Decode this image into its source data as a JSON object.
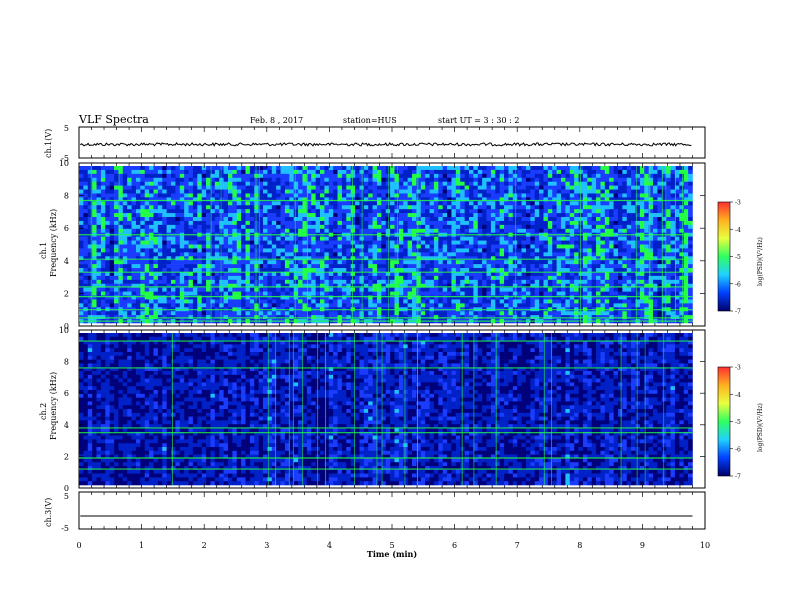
{
  "header": {
    "title": "VLF Spectra",
    "date": "Feb. 8  , 2017",
    "station": "station=HUS",
    "start": "start  UT  =   3  : 30 : 2"
  },
  "colors": {
    "spec_low": "#00007a",
    "spec_mid": "#1a3cff",
    "spec_high": "#22ff44",
    "trace": "#000000"
  },
  "colorbar": {
    "label": "log(PSD)(V²/Hz)",
    "ticks": [
      "-3",
      "-4",
      "-5",
      "-6",
      "-7"
    ],
    "range": [
      -7,
      -3
    ],
    "stops": [
      "#ff3030",
      "#ffb020",
      "#e8ff40",
      "#30ff60",
      "#20d0ff",
      "#0040ff",
      "#00006a"
    ]
  },
  "chart_data": [
    {
      "type": "line",
      "panel": "ch1-waveform",
      "ylabel": "ch.1(V)",
      "ylim": [
        -5,
        5
      ],
      "yticks": [
        "5",
        "-5"
      ],
      "xlim": [
        0,
        10
      ],
      "series": [
        {
          "values_description_level": -0.6
        }
      ]
    },
    {
      "type": "heatmap",
      "panel": "ch1-spectrogram",
      "ylabel": "ch.1",
      "ylabel2": "Frequency (kHz)",
      "ylim": [
        0,
        10
      ],
      "yticks": [
        "0",
        "2",
        "4",
        "6",
        "8",
        "10"
      ],
      "xlim": [
        0,
        9.8
      ],
      "band_lines_khz": [
        0.3,
        0.5,
        1.0,
        1.8,
        2.4,
        3.3,
        4.1,
        5.6,
        7.7
      ],
      "mean_intensity": 0.62
    },
    {
      "type": "heatmap",
      "panel": "ch2-spectrogram",
      "ylabel": "ch.2",
      "ylabel2": "Frequency (kHz)",
      "ylim": [
        0,
        10
      ],
      "yticks": [
        "0",
        "2",
        "4",
        "6",
        "8",
        "10"
      ],
      "xlim": [
        0,
        9.8
      ],
      "band_lines_khz": [
        1.2,
        1.9,
        3.5,
        3.8,
        7.6,
        9.3
      ],
      "mean_intensity": 0.32
    },
    {
      "type": "line",
      "panel": "ch3-waveform",
      "ylabel": "ch.3(V)",
      "ylim": [
        -5,
        5
      ],
      "yticks": [
        "5",
        "-5"
      ],
      "xlim": [
        0,
        10
      ],
      "series": [
        {
          "values_description_level": -1.5
        }
      ]
    }
  ],
  "xaxis": {
    "label": "Time  (min)",
    "ticks": [
      "0",
      "1",
      "2",
      "3",
      "4",
      "5",
      "6",
      "7",
      "8",
      "9",
      "10"
    ],
    "range": [
      0,
      10
    ]
  }
}
